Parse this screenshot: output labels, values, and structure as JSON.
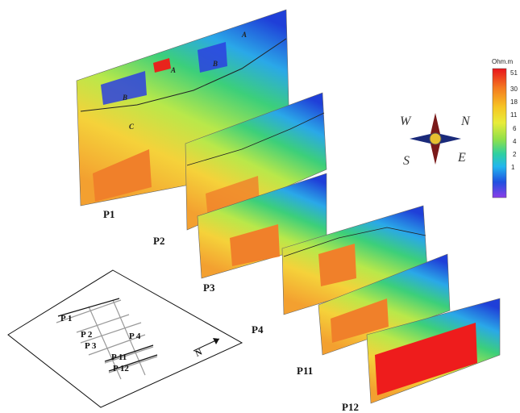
{
  "sections": [
    {
      "label": "P1",
      "layers": [
        "B",
        "C",
        "A",
        "B",
        "A"
      ]
    },
    {
      "label": "P2"
    },
    {
      "label": "P3"
    },
    {
      "label": "P4"
    },
    {
      "label": "P11"
    },
    {
      "label": "P12"
    }
  ],
  "compass": [
    "W",
    "N",
    "S",
    "E"
  ],
  "legend": {
    "title": "Ohm.m",
    "labels": [
      "51",
      "30",
      "18",
      "11",
      "6",
      "4",
      "2",
      "1"
    ]
  },
  "map": {
    "labels": [
      "P 1",
      "P 2",
      "P 3",
      "P 4",
      "P 11",
      "P 12"
    ],
    "north": "N"
  }
}
